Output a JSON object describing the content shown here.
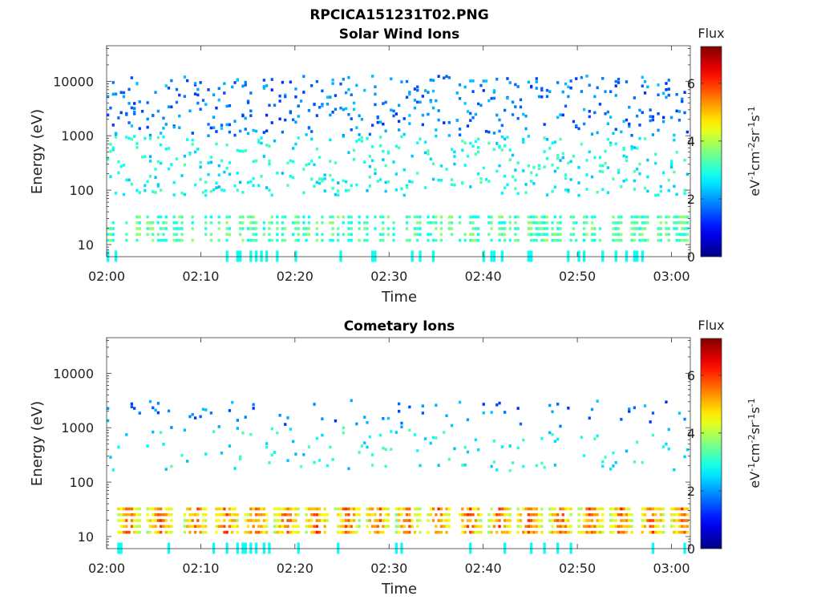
{
  "figure": {
    "title": "RPCICA151231T02.PNG"
  },
  "chart_data": [
    {
      "type": "heatmap",
      "title": "Solar Wind Ions",
      "xlabel": "Time",
      "ylabel": "Energy (eV)",
      "x_ticks": [
        "02:00",
        "02:10",
        "02:20",
        "02:30",
        "02:40",
        "02:50",
        "03:00"
      ],
      "y_ticks": [
        "10",
        "100",
        "1000",
        "10000"
      ],
      "y_scale": "log",
      "ylim": [
        6,
        45000
      ],
      "xlim_minutes": [
        0,
        62
      ],
      "colorbar": {
        "label": "Flux",
        "unit_label": "eV-1cm-2sr-1s-1",
        "ticks": [
          "0",
          "2",
          "4",
          "6"
        ],
        "range": [
          0,
          7.3
        ]
      },
      "low_band_flux": 3.3
    },
    {
      "type": "heatmap",
      "title": "Cometary Ions",
      "xlabel": "Time",
      "ylabel": "Energy (eV)",
      "x_ticks": [
        "02:00",
        "02:10",
        "02:20",
        "02:30",
        "02:40",
        "02:50",
        "03:00"
      ],
      "y_ticks": [
        "10",
        "100",
        "1000",
        "10000"
      ],
      "y_scale": "log",
      "ylim": [
        6,
        45000
      ],
      "xlim_minutes": [
        0,
        62
      ],
      "colorbar": {
        "label": "Flux",
        "unit_label": "eV-1cm-2sr-1s-1",
        "ticks": [
          "0",
          "2",
          "4",
          "6"
        ],
        "range": [
          0,
          7.3
        ]
      },
      "low_band_flux": 5.2,
      "burst_centers_min": [
        2.2,
        5.5,
        9.3,
        12.6,
        15.8,
        19.0,
        22.2,
        25.4,
        28.7,
        31.9,
        35.1,
        38.4,
        41.6,
        44.8,
        48.1,
        51.3,
        54.5,
        57.8,
        61.0
      ]
    }
  ]
}
